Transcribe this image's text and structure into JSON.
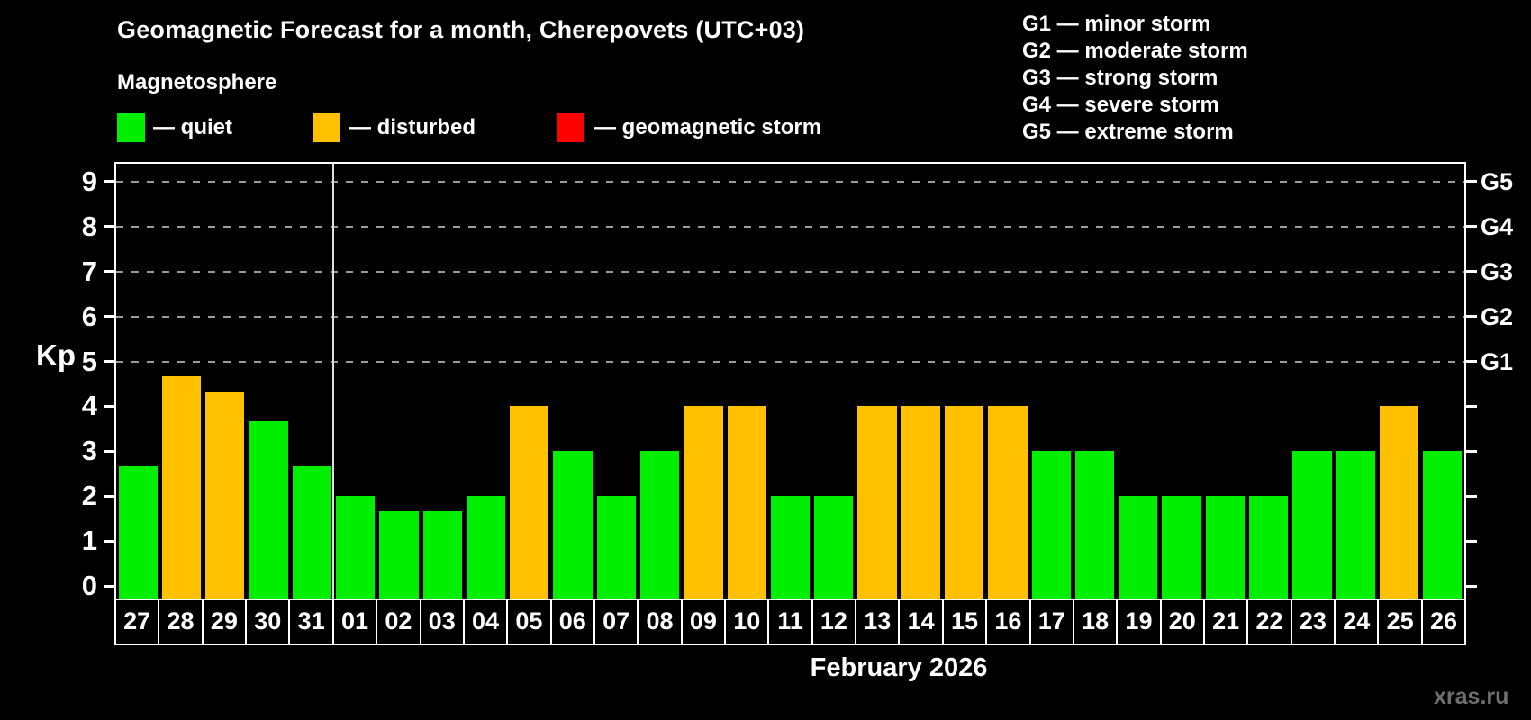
{
  "title": "Geomagnetic Forecast for a month, Cherepovets (UTC+03)",
  "subtitle": "Magnetosphere",
  "legend": {
    "quiet": {
      "label": "— quiet",
      "color": "#00ee00"
    },
    "disturbed": {
      "label": "— disturbed",
      "color": "#ffc000"
    },
    "storm": {
      "label": "— geomagnetic storm",
      "color": "#ff0000"
    }
  },
  "g_legend": [
    {
      "label": "G1 — minor storm"
    },
    {
      "label": "G2 — moderate storm"
    },
    {
      "label": "G3 — strong storm"
    },
    {
      "label": "G4 — severe storm"
    },
    {
      "label": "G5 — extreme storm"
    }
  ],
  "watermark": "xras.ru",
  "chart_data": {
    "type": "bar",
    "title": "Geomagnetic Forecast for a month, Cherepovets (UTC+03)",
    "xlabel": "February 2026",
    "ylabel": "Kp",
    "ylim": [
      0,
      9.4
    ],
    "yticks": [
      0,
      1,
      2,
      3,
      4,
      5,
      6,
      7,
      8,
      9
    ],
    "gridlines_at": [
      5,
      6,
      7,
      8,
      9
    ],
    "grid": "dashed horizontal at storm levels only",
    "legend_position": "top",
    "right_axis_labels": [
      {
        "kp": 5,
        "label": "G1"
      },
      {
        "kp": 6,
        "label": "G2"
      },
      {
        "kp": 7,
        "label": "G3"
      },
      {
        "kp": 8,
        "label": "G4"
      },
      {
        "kp": 9,
        "label": "G5"
      }
    ],
    "month_boundary_after_index": 4,
    "bars": [
      {
        "day": "27",
        "kp": 2.67,
        "state": "quiet"
      },
      {
        "day": "28",
        "kp": 4.67,
        "state": "disturbed"
      },
      {
        "day": "29",
        "kp": 4.33,
        "state": "disturbed"
      },
      {
        "day": "30",
        "kp": 3.67,
        "state": "quiet"
      },
      {
        "day": "31",
        "kp": 2.67,
        "state": "quiet"
      },
      {
        "day": "01",
        "kp": 2.0,
        "state": "quiet"
      },
      {
        "day": "02",
        "kp": 1.67,
        "state": "quiet"
      },
      {
        "day": "03",
        "kp": 1.67,
        "state": "quiet"
      },
      {
        "day": "04",
        "kp": 2.0,
        "state": "quiet"
      },
      {
        "day": "05",
        "kp": 4.0,
        "state": "disturbed"
      },
      {
        "day": "06",
        "kp": 3.0,
        "state": "quiet"
      },
      {
        "day": "07",
        "kp": 2.0,
        "state": "quiet"
      },
      {
        "day": "08",
        "kp": 3.0,
        "state": "quiet"
      },
      {
        "day": "09",
        "kp": 4.0,
        "state": "disturbed"
      },
      {
        "day": "10",
        "kp": 4.0,
        "state": "disturbed"
      },
      {
        "day": "11",
        "kp": 2.0,
        "state": "quiet"
      },
      {
        "day": "12",
        "kp": 2.0,
        "state": "quiet"
      },
      {
        "day": "13",
        "kp": 4.0,
        "state": "disturbed"
      },
      {
        "day": "14",
        "kp": 4.0,
        "state": "disturbed"
      },
      {
        "day": "15",
        "kp": 4.0,
        "state": "disturbed"
      },
      {
        "day": "16",
        "kp": 4.0,
        "state": "disturbed"
      },
      {
        "day": "17",
        "kp": 3.0,
        "state": "quiet"
      },
      {
        "day": "18",
        "kp": 3.0,
        "state": "quiet"
      },
      {
        "day": "19",
        "kp": 2.0,
        "state": "quiet"
      },
      {
        "day": "20",
        "kp": 2.0,
        "state": "quiet"
      },
      {
        "day": "21",
        "kp": 2.0,
        "state": "quiet"
      },
      {
        "day": "22",
        "kp": 2.0,
        "state": "quiet"
      },
      {
        "day": "23",
        "kp": 3.0,
        "state": "quiet"
      },
      {
        "day": "24",
        "kp": 3.0,
        "state": "quiet"
      },
      {
        "day": "25",
        "kp": 4.0,
        "state": "disturbed"
      },
      {
        "day": "26",
        "kp": 3.0,
        "state": "quiet"
      }
    ]
  }
}
